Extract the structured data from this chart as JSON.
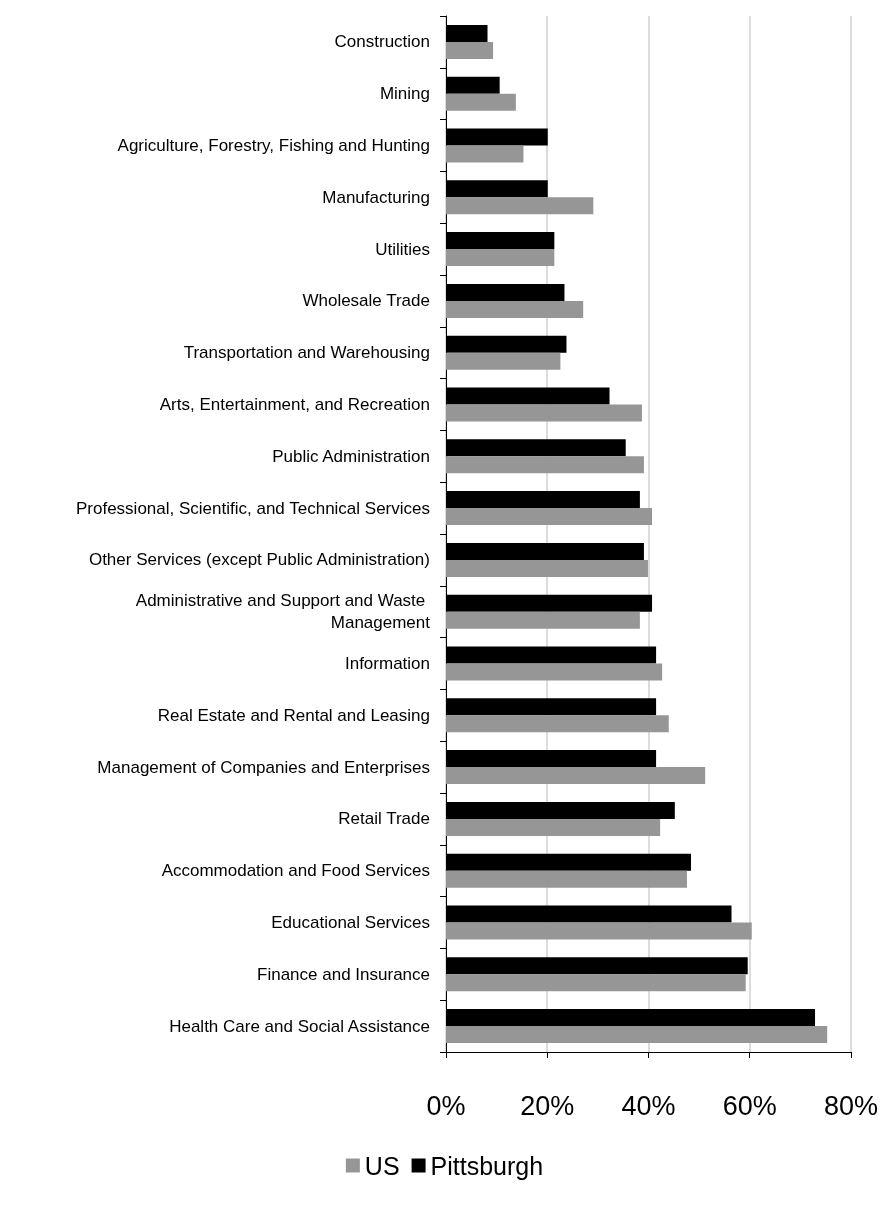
{
  "chart_data": {
    "type": "bar",
    "orientation": "horizontal",
    "categories": [
      "Construction",
      "Mining",
      "Agriculture, Forestry, Fishing and Hunting",
      "Manufacturing",
      "Utilities",
      "Wholesale Trade",
      "Transportation and Warehousing",
      "Arts, Entertainment, and Recreation",
      "Public Administration",
      "Professional, Scientific, and Technical Services",
      "Other Services (except Public Administration)",
      "Administrative and Support and Waste Management",
      "Information",
      "Real Estate and Rental and Leasing",
      "Management of Companies and Enterprises",
      "Retail Trade",
      "Accommodation and Food Services",
      "Educational Services",
      "Finance and Insurance",
      "Health Care and Social Assistance"
    ],
    "series": [
      {
        "name": "US",
        "color": "#969696",
        "values": [
          9.3,
          13.8,
          15.3,
          29.1,
          21.4,
          27.1,
          22.6,
          38.7,
          39.1,
          40.7,
          39.9,
          38.3,
          42.7,
          44.0,
          51.2,
          42.3,
          47.6,
          60.4,
          59.2,
          75.3
        ]
      },
      {
        "name": "Pittsburgh",
        "color": "#000000",
        "values": [
          8.2,
          10.6,
          20.1,
          20.1,
          21.4,
          23.4,
          23.8,
          32.3,
          35.5,
          38.3,
          39.1,
          40.7,
          41.5,
          41.5,
          41.5,
          45.2,
          48.4,
          56.4,
          59.6,
          72.9
        ]
      }
    ],
    "xlim": [
      0,
      80
    ],
    "xticks": [
      {
        "value": 0,
        "label": "0%"
      },
      {
        "value": 20,
        "label": "20%"
      },
      {
        "value": 40,
        "label": "40%"
      },
      {
        "value": 60,
        "label": "60%"
      },
      {
        "value": 80,
        "label": "80%"
      }
    ],
    "grid": "x",
    "legend": "bottom"
  }
}
